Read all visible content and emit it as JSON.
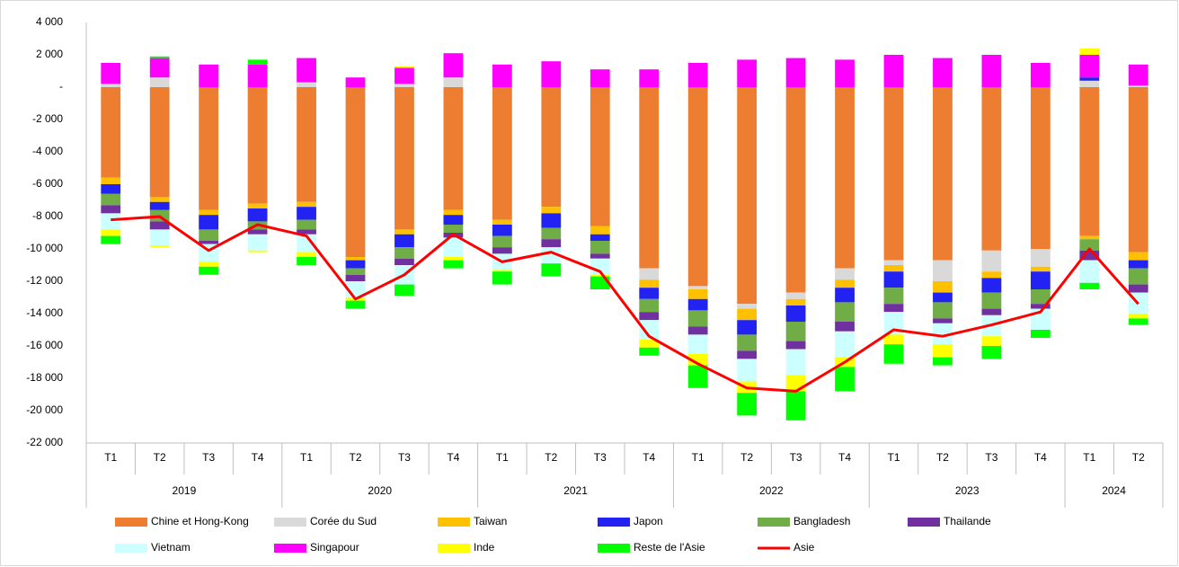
{
  "chart_data": {
    "type": "bar",
    "categories": [
      "T1",
      "T2",
      "T3",
      "T4",
      "T1",
      "T2",
      "T3",
      "T4",
      "T1",
      "T2",
      "T3",
      "T4",
      "T1",
      "T2",
      "T3",
      "T4",
      "T1",
      "T2",
      "T3",
      "T4",
      "T1",
      "T2"
    ],
    "years": [
      "2019",
      "2019",
      "2019",
      "2019",
      "2020",
      "2020",
      "2020",
      "2020",
      "2021",
      "2021",
      "2021",
      "2021",
      "2022",
      "2022",
      "2022",
      "2022",
      "2023",
      "2023",
      "2023",
      "2023",
      "2024",
      "2024"
    ],
    "ylim": [
      -22000,
      4000
    ],
    "yticks": [
      {
        "value": 4000,
        "label": "4 000"
      },
      {
        "value": 2000,
        "label": "2 000"
      },
      {
        "value": 0,
        "label": "-"
      },
      {
        "value": -2000,
        "label": "-2 000"
      },
      {
        "value": -4000,
        "label": "-4 000"
      },
      {
        "value": -6000,
        "label": "-6 000"
      },
      {
        "value": -8000,
        "label": "-8 000"
      },
      {
        "value": -10000,
        "label": "-10 000"
      },
      {
        "value": -12000,
        "label": "-12 000"
      },
      {
        "value": -14000,
        "label": "-14 000"
      },
      {
        "value": -16000,
        "label": "-16 000"
      },
      {
        "value": -18000,
        "label": "-18 000"
      },
      {
        "value": -20000,
        "label": "-20 000"
      },
      {
        "value": -22000,
        "label": "-22 000"
      }
    ],
    "grid": false,
    "stacked": true,
    "series": [
      {
        "name": "Chine et Hong-Kong",
        "color": "#ED7D31",
        "values": [
          -5600,
          -6800,
          -7600,
          -7200,
          -7100,
          -10500,
          -8800,
          -7600,
          -8200,
          -7400,
          -8600,
          -11200,
          -12300,
          -13400,
          -12700,
          -11200,
          -10700,
          -10700,
          -10100,
          -10000,
          -9200,
          -10200
        ]
      },
      {
        "name": "Corée du Sud",
        "color": "#D9D9D9",
        "values": [
          200,
          600,
          0,
          0,
          300,
          0,
          200,
          600,
          0,
          0,
          0,
          -700,
          -200,
          -300,
          -400,
          -700,
          -300,
          -1300,
          -1300,
          -1100,
          400,
          100
        ]
      },
      {
        "name": "Taiwan",
        "color": "#FFC000",
        "values": [
          -400,
          -300,
          -300,
          -300,
          -300,
          -200,
          -300,
          -300,
          -300,
          -400,
          -500,
          -500,
          -600,
          -700,
          -400,
          -500,
          -400,
          -700,
          -400,
          -300,
          -200,
          -500
        ]
      },
      {
        "name": "Japon",
        "color": "#2222F2",
        "values": [
          -600,
          -500,
          -900,
          -800,
          -800,
          -500,
          -800,
          -600,
          -700,
          -900,
          -400,
          -700,
          -700,
          -900,
          -1000,
          -900,
          -1000,
          -600,
          -900,
          -1100,
          200,
          -500
        ]
      },
      {
        "name": "Bangladesh",
        "color": "#70AD47",
        "values": [
          -700,
          -700,
          -700,
          -500,
          -600,
          -400,
          -700,
          -500,
          -700,
          -700,
          -800,
          -800,
          -1000,
          -1000,
          -1200,
          -1200,
          -1000,
          -1000,
          -1000,
          -900,
          -700,
          -1000
        ]
      },
      {
        "name": "Thailande",
        "color": "#7030A0",
        "values": [
          -500,
          -500,
          -200,
          -300,
          -300,
          -400,
          -400,
          -300,
          -400,
          -500,
          -300,
          -500,
          -500,
          -500,
          -500,
          -600,
          -500,
          -300,
          -400,
          -300,
          -600,
          -500
        ]
      },
      {
        "name": "Vietnam",
        "color": "#CCFFFF",
        "values": [
          -1000,
          -1000,
          -1100,
          -1000,
          -1100,
          -1000,
          -1200,
          -1200,
          -1000,
          -1000,
          -1000,
          -1200,
          -1200,
          -1400,
          -1600,
          -1600,
          -1400,
          -1300,
          -1300,
          -1300,
          -1400,
          -1300
        ]
      },
      {
        "name": "Singapour",
        "color": "#FF00FF",
        "values": [
          1300,
          1200,
          1400,
          1400,
          1500,
          600,
          1000,
          1500,
          1400,
          1600,
          1100,
          1100,
          1500,
          1700,
          1800,
          1700,
          2000,
          1800,
          2000,
          1500,
          1400,
          1300
        ]
      },
      {
        "name": "Inde",
        "color": "#FFFF00",
        "values": [
          -400,
          -100,
          -300,
          -100,
          -300,
          -200,
          100,
          -200,
          -100,
          0,
          -100,
          -500,
          -700,
          -700,
          -1000,
          -600,
          -600,
          -800,
          -600,
          0,
          400,
          -300
        ]
      },
      {
        "name": "Reste de l'Asie",
        "color": "#00FF00",
        "values": [
          -500,
          100,
          -500,
          300,
          -500,
          -500,
          -700,
          -500,
          -800,
          -800,
          -800,
          -500,
          -1400,
          -1400,
          -1800,
          -1500,
          -1200,
          -500,
          -800,
          -500,
          -400,
          -400
        ]
      },
      {
        "name": "Asie",
        "type": "line",
        "color": "#FF0000",
        "values": [
          -8200,
          -8000,
          -10100,
          -8500,
          -9200,
          -13100,
          -11600,
          -9100,
          -10800,
          -10200,
          -11400,
          -15400,
          -17100,
          -18600,
          -18800,
          -17000,
          -15000,
          -15400,
          -14700,
          -13900,
          -10000,
          -13400
        ]
      }
    ]
  }
}
